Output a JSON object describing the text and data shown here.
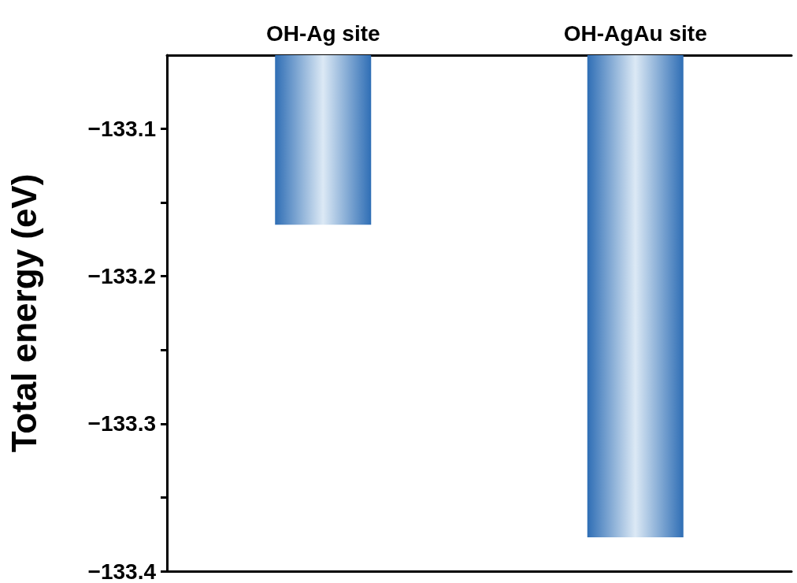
{
  "chart_data": {
    "type": "bar",
    "ylabel": "Total energy (eV)",
    "categories": [
      "OH-Ag site",
      "OH-AgAu site"
    ],
    "values": [
      -133.165,
      -133.377
    ],
    "color": "#2f6eb5",
    "ylim": [
      -133.4,
      -133.05
    ],
    "yticks": [
      {
        "value": -133.4,
        "label": "−133.4"
      },
      {
        "value": -133.35,
        "label": null
      },
      {
        "value": -133.3,
        "label": "−133.3"
      },
      {
        "value": -133.25,
        "label": null
      },
      {
        "value": -133.2,
        "label": "−133.2"
      },
      {
        "value": -133.15,
        "label": null
      },
      {
        "value": -133.1,
        "label": "−133.1"
      }
    ]
  }
}
